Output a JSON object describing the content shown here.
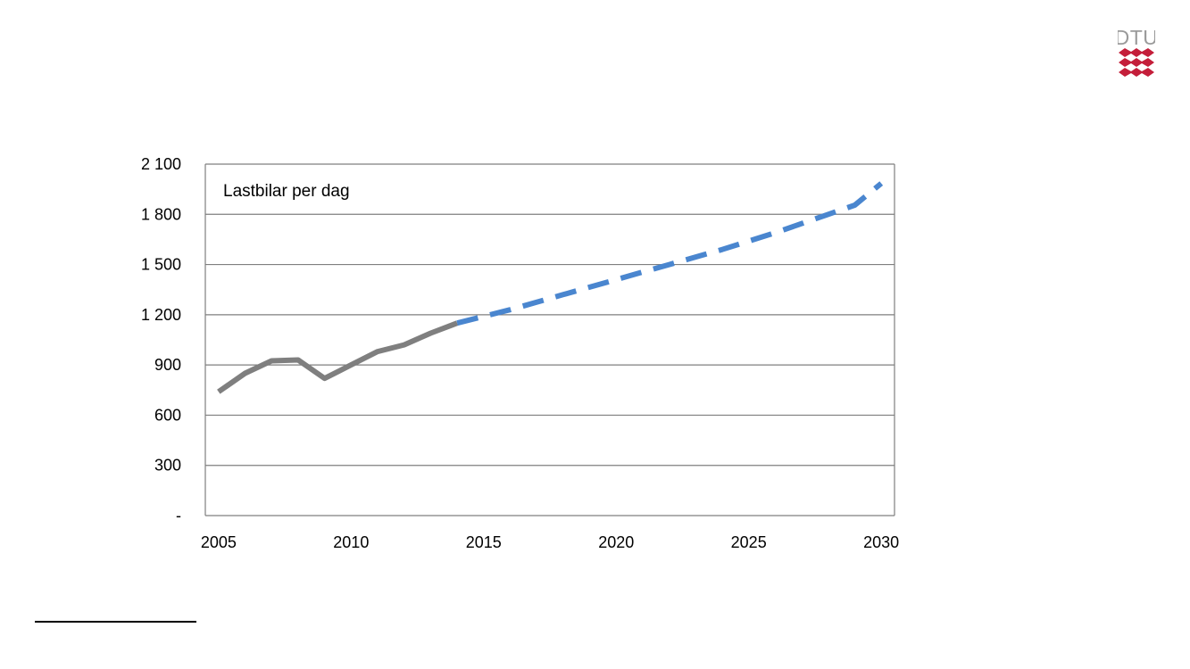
{
  "logo": {
    "text": "DTU",
    "text_color": "#9a9a9a",
    "mark_color": "#c41e3a"
  },
  "chart_data": {
    "type": "line",
    "annotation": "Lastbilar per dag",
    "x_ticks": [
      2005,
      2010,
      2015,
      2020,
      2025,
      2030
    ],
    "y_ticks": [
      {
        "value": 0,
        "label": "-"
      },
      {
        "value": 300,
        "label": "300"
      },
      {
        "value": 600,
        "label": "600"
      },
      {
        "value": 900,
        "label": "900"
      },
      {
        "value": 1200,
        "label": "1 200"
      },
      {
        "value": 1500,
        "label": "1 500"
      },
      {
        "value": 1800,
        "label": "1 800"
      },
      {
        "value": 2100,
        "label": "2 100"
      }
    ],
    "xlim": [
      2004.5,
      2030.5
    ],
    "ylim": [
      0,
      2100
    ],
    "grid": true,
    "series": [
      {
        "color": "#7f7f7f",
        "style": "solid",
        "x": [
          2005,
          2006,
          2007,
          2008,
          2009,
          2010,
          2011,
          2012,
          2013,
          2014
        ],
        "y": [
          740,
          850,
          925,
          930,
          820,
          900,
          980,
          1020,
          1090,
          1150
        ]
      },
      {
        "color": "#4a86cf",
        "style": "dashed",
        "x": [
          2014,
          2015,
          2016,
          2017,
          2018,
          2019,
          2020,
          2021,
          2022,
          2023,
          2024,
          2025,
          2026,
          2027,
          2028,
          2029,
          2030
        ],
        "y": [
          1150,
          1190,
          1230,
          1275,
          1320,
          1365,
          1410,
          1455,
          1500,
          1545,
          1590,
          1640,
          1690,
          1745,
          1800,
          1855,
          1985
        ]
      }
    ]
  }
}
